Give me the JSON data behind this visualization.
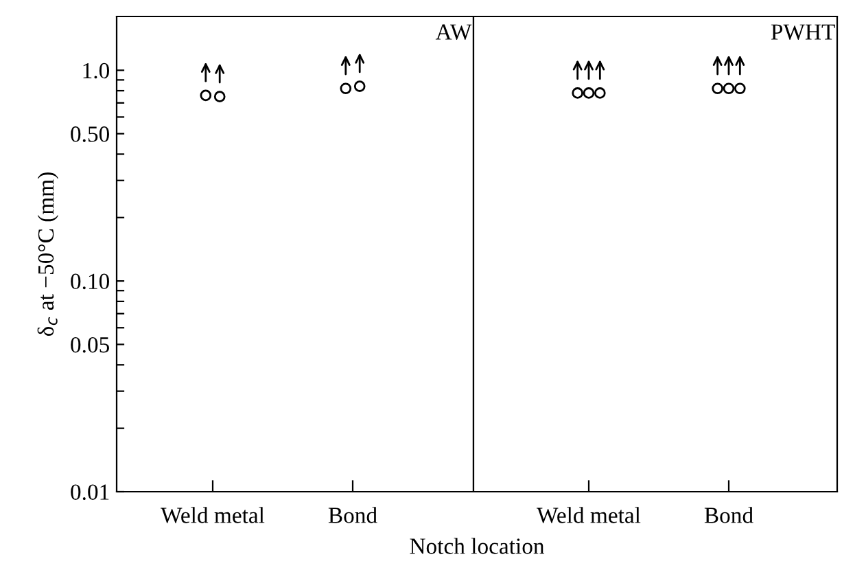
{
  "chart_data": [
    {
      "type": "scatter",
      "categories": [
        "Weld metal",
        "Bond"
      ],
      "xlabel": "Notch location",
      "ylabel": "δ$_{c}$ at −50°C (mm)",
      "annotations": [
        "AW"
      ],
      "log": "y",
      "ylim": [
        0.01,
        1.8
      ],
      "yticks": [
        0.01,
        {
          "value": 0.02,
          "label": null
        },
        {
          "value": 0.03,
          "label": null
        },
        {
          "value": 0.04,
          "label": null
        },
        0.05,
        {
          "value": 0.06,
          "label": null
        },
        {
          "value": 0.07,
          "label": null
        },
        {
          "value": 0.08,
          "label": null
        },
        {
          "value": 0.09,
          "label": null
        },
        {
          "value": 0.1,
          "label": "0.10"
        },
        {
          "value": 0.2,
          "label": null
        },
        {
          "value": 0.3,
          "label": null
        },
        {
          "value": 0.4,
          "label": null
        },
        {
          "value": 0.5,
          "label": "0.50"
        },
        {
          "value": 0.6,
          "label": null
        },
        {
          "value": 0.7,
          "label": null
        },
        {
          "value": 0.8,
          "label": null
        },
        {
          "value": 0.9,
          "label": null
        },
        {
          "value": 1.0,
          "label": "1.0"
        }
      ],
      "marker": "circle",
      "grid": false,
      "legend": false,
      "series": [
        {
          "color": "#000000",
          "values": [
            0.76,
            0.82
          ]
        },
        {
          "color": "#000000",
          "values": [
            0.75,
            0.84
          ]
        }
      ]
    },
    {
      "type": "scatter",
      "categories": [
        "Weld metal",
        "Bond"
      ],
      "annotations": [
        "PWHT"
      ],
      "log": "y",
      "ylim": [
        0.01,
        1.8
      ],
      "tick_labels": "x",
      "marker": "circle",
      "grid": false,
      "legend": false,
      "series": [
        {
          "color": "#000000",
          "values": [
            0.78,
            0.82
          ]
        },
        {
          "color": "#000000",
          "values": [
            0.78,
            0.82
          ]
        },
        {
          "color": "#000000",
          "values": [
            0.78,
            0.82
          ]
        }
      ]
    }
  ]
}
